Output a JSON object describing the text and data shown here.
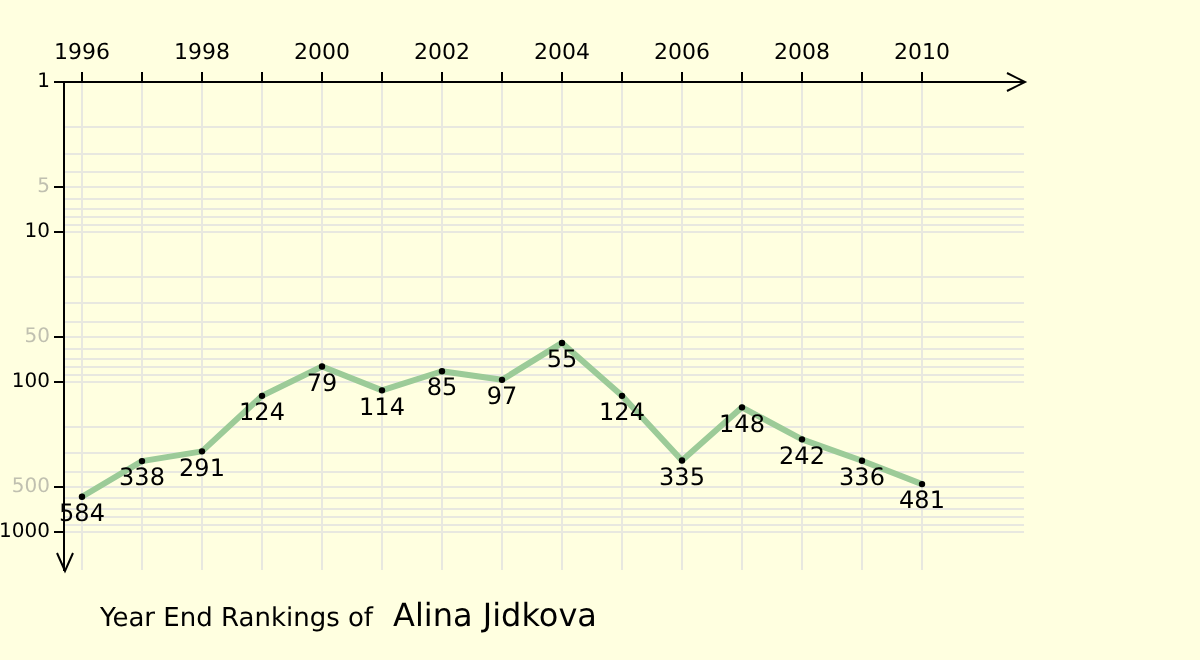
{
  "chart_data": {
    "type": "line",
    "title": "Year End Rankings of",
    "subtitle": "Alina Jidkova",
    "x": [
      1996,
      1997,
      1998,
      1999,
      2000,
      2001,
      2002,
      2003,
      2004,
      2005,
      2006,
      2007,
      2008,
      2009,
      2010
    ],
    "series": [
      {
        "color": "#9ccb98",
        "values": [
          584,
          338,
          291,
          124,
          79,
          114,
          85,
          97,
          55,
          124,
          335,
          148,
          242,
          336,
          481
        ]
      }
    ],
    "xlim": [
      1995.7,
      2011.7
    ],
    "xticks": [
      1996,
      {
        "value": 1997,
        "label": null
      },
      1998,
      {
        "value": 1999,
        "label": null
      },
      2000,
      {
        "value": 2001,
        "label": null
      },
      2002,
      {
        "value": 2003,
        "label": null
      },
      2004,
      {
        "value": 2005,
        "label": null
      },
      2006,
      {
        "value": 2007,
        "label": null
      },
      2008,
      {
        "value": 2009,
        "label": null
      },
      2010
    ],
    "ylim": [
      1800,
      1
    ],
    "yticks": [
      1,
      {
        "value": 2,
        "label": null
      },
      {
        "value": 3,
        "label": null
      },
      {
        "value": 4,
        "label": null
      },
      5,
      {
        "value": 6,
        "label": null
      },
      {
        "value": 7,
        "label": null
      },
      {
        "value": 8,
        "label": null
      },
      {
        "value": 9,
        "label": null
      },
      10,
      {
        "value": 20,
        "label": null
      },
      {
        "value": 30,
        "label": null
      },
      {
        "value": 40,
        "label": null
      },
      50,
      {
        "value": 60,
        "label": null
      },
      {
        "value": 70,
        "label": null
      },
      {
        "value": 80,
        "label": null
      },
      {
        "value": 90,
        "label": null
      },
      100,
      {
        "value": 200,
        "label": null
      },
      {
        "value": 300,
        "label": null
      },
      {
        "value": 400,
        "label": null
      },
      500,
      {
        "value": 600,
        "label": null
      },
      {
        "value": 700,
        "label": null
      },
      {
        "value": 800,
        "label": null
      },
      {
        "value": 900,
        "label": null
      },
      1000
    ],
    "log": "y",
    "grid": true,
    "legend": false,
    "marker": "circle",
    "line_style": "solid",
    "data_labels": true
  }
}
